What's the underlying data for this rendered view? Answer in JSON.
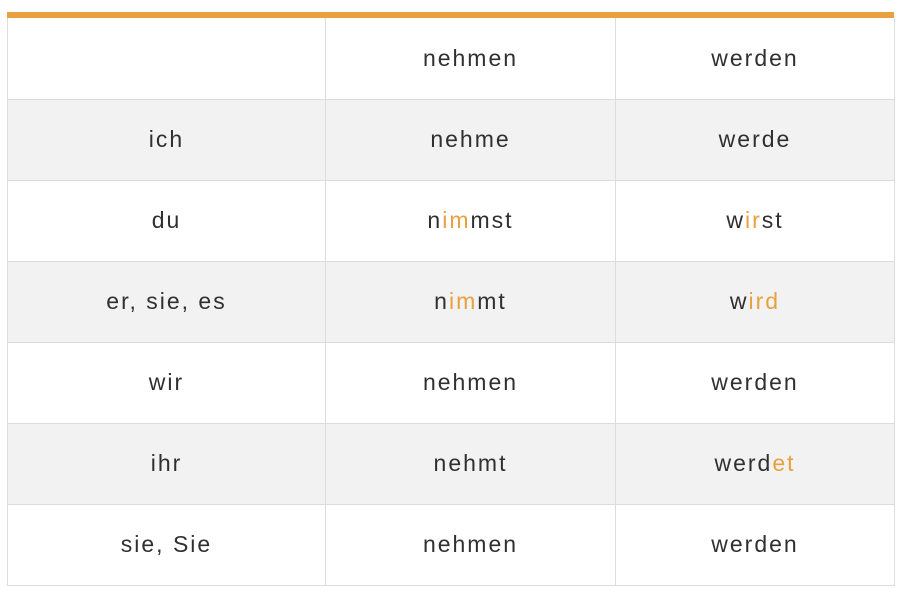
{
  "theme": {
    "accent_color": "#e8a13e",
    "text_color": "#303030",
    "stripe_color": "#f2f2f2",
    "border_color": "#dcdcdc",
    "background_color": "#ffffff"
  },
  "table": {
    "columns": [
      "",
      "nehmen",
      "werden"
    ],
    "rows": [
      {
        "pronoun": "ich",
        "nehmen": [
          {
            "text": "nehme",
            "highlight": false
          }
        ],
        "werden": [
          {
            "text": "werde",
            "highlight": false
          }
        ]
      },
      {
        "pronoun": "du",
        "nehmen": [
          {
            "text": "n",
            "highlight": false
          },
          {
            "text": "im",
            "highlight": true
          },
          {
            "text": "mst",
            "highlight": false
          }
        ],
        "werden": [
          {
            "text": "w",
            "highlight": false
          },
          {
            "text": "ir",
            "highlight": true
          },
          {
            "text": "st",
            "highlight": false
          }
        ]
      },
      {
        "pronoun": "er, sie, es",
        "nehmen": [
          {
            "text": "n",
            "highlight": false
          },
          {
            "text": "im",
            "highlight": true
          },
          {
            "text": "mt",
            "highlight": false
          }
        ],
        "werden": [
          {
            "text": "w",
            "highlight": false
          },
          {
            "text": "ird",
            "highlight": true
          }
        ]
      },
      {
        "pronoun": "wir",
        "nehmen": [
          {
            "text": "nehmen",
            "highlight": false
          }
        ],
        "werden": [
          {
            "text": "werden",
            "highlight": false
          }
        ]
      },
      {
        "pronoun": "ihr",
        "nehmen": [
          {
            "text": "nehmt",
            "highlight": false
          }
        ],
        "werden": [
          {
            "text": "werd",
            "highlight": false
          },
          {
            "text": "et",
            "highlight": true
          }
        ]
      },
      {
        "pronoun": "sie, Sie",
        "nehmen": [
          {
            "text": "nehmen",
            "highlight": false
          }
        ],
        "werden": [
          {
            "text": "werden",
            "highlight": false
          }
        ]
      }
    ]
  }
}
